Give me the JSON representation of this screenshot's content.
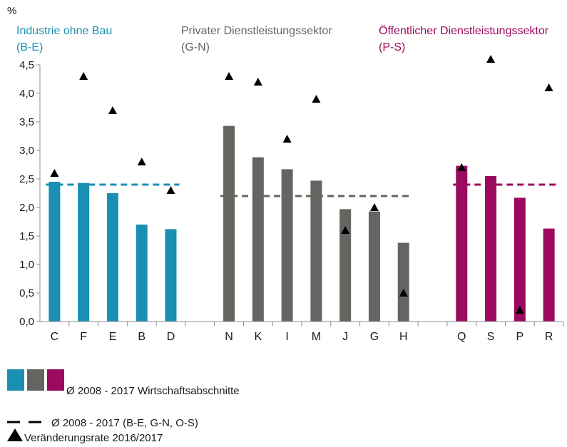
{
  "chart_data": {
    "type": "bar",
    "ylabel": "%",
    "ylim": [
      0,
      4.5
    ],
    "yticks": [
      "0,0",
      "0,5",
      "1,0",
      "1,5",
      "2,0",
      "2,5",
      "3,0",
      "3,5",
      "4,0",
      "4,5"
    ],
    "grid": false,
    "colors": {
      "industry": "#1a8fb3",
      "private": "#646561",
      "public": "#9b0a5f",
      "marker": "#000000"
    },
    "groups": [
      {
        "label_line1": "Industrie ohne Bau",
        "label_line2": "(B-E)",
        "color_key": "industry",
        "average": 2.4,
        "categories": [
          "C",
          "F",
          "E",
          "B",
          "D"
        ],
        "values": [
          2.45,
          2.43,
          2.25,
          1.7,
          1.62
        ],
        "change_rate": [
          2.6,
          4.3,
          3.7,
          2.8,
          2.3
        ]
      },
      {
        "label_line1": "Privater Dienstleistungssektor",
        "label_line2": "(G-N)",
        "color_key": "private",
        "average": 2.2,
        "categories": [
          "N",
          "K",
          "I",
          "M",
          "J",
          "G",
          "H"
        ],
        "values": [
          3.43,
          2.88,
          2.67,
          2.47,
          1.97,
          1.93,
          1.38
        ],
        "change_rate": [
          4.3,
          4.2,
          3.2,
          3.9,
          1.6,
          2.0,
          0.5
        ]
      },
      {
        "label_line1": "Öffentlicher Dienstleistungssektor",
        "label_line2": "(P-S)",
        "color_key": "public",
        "average": 2.4,
        "categories": [
          "Q",
          "S",
          "P",
          "R"
        ],
        "values": [
          2.73,
          2.55,
          2.17,
          1.63
        ],
        "change_rate": [
          2.7,
          4.6,
          0.2,
          4.1
        ]
      }
    ],
    "legend": {
      "bars": "Ø 2008 - 2017 Wirtschaftsabschnitte",
      "dashed": "Ø 2008 - 2017 (B-E, G-N, O-S)",
      "triangle": "Veränderungsrate 2016/2017"
    }
  }
}
